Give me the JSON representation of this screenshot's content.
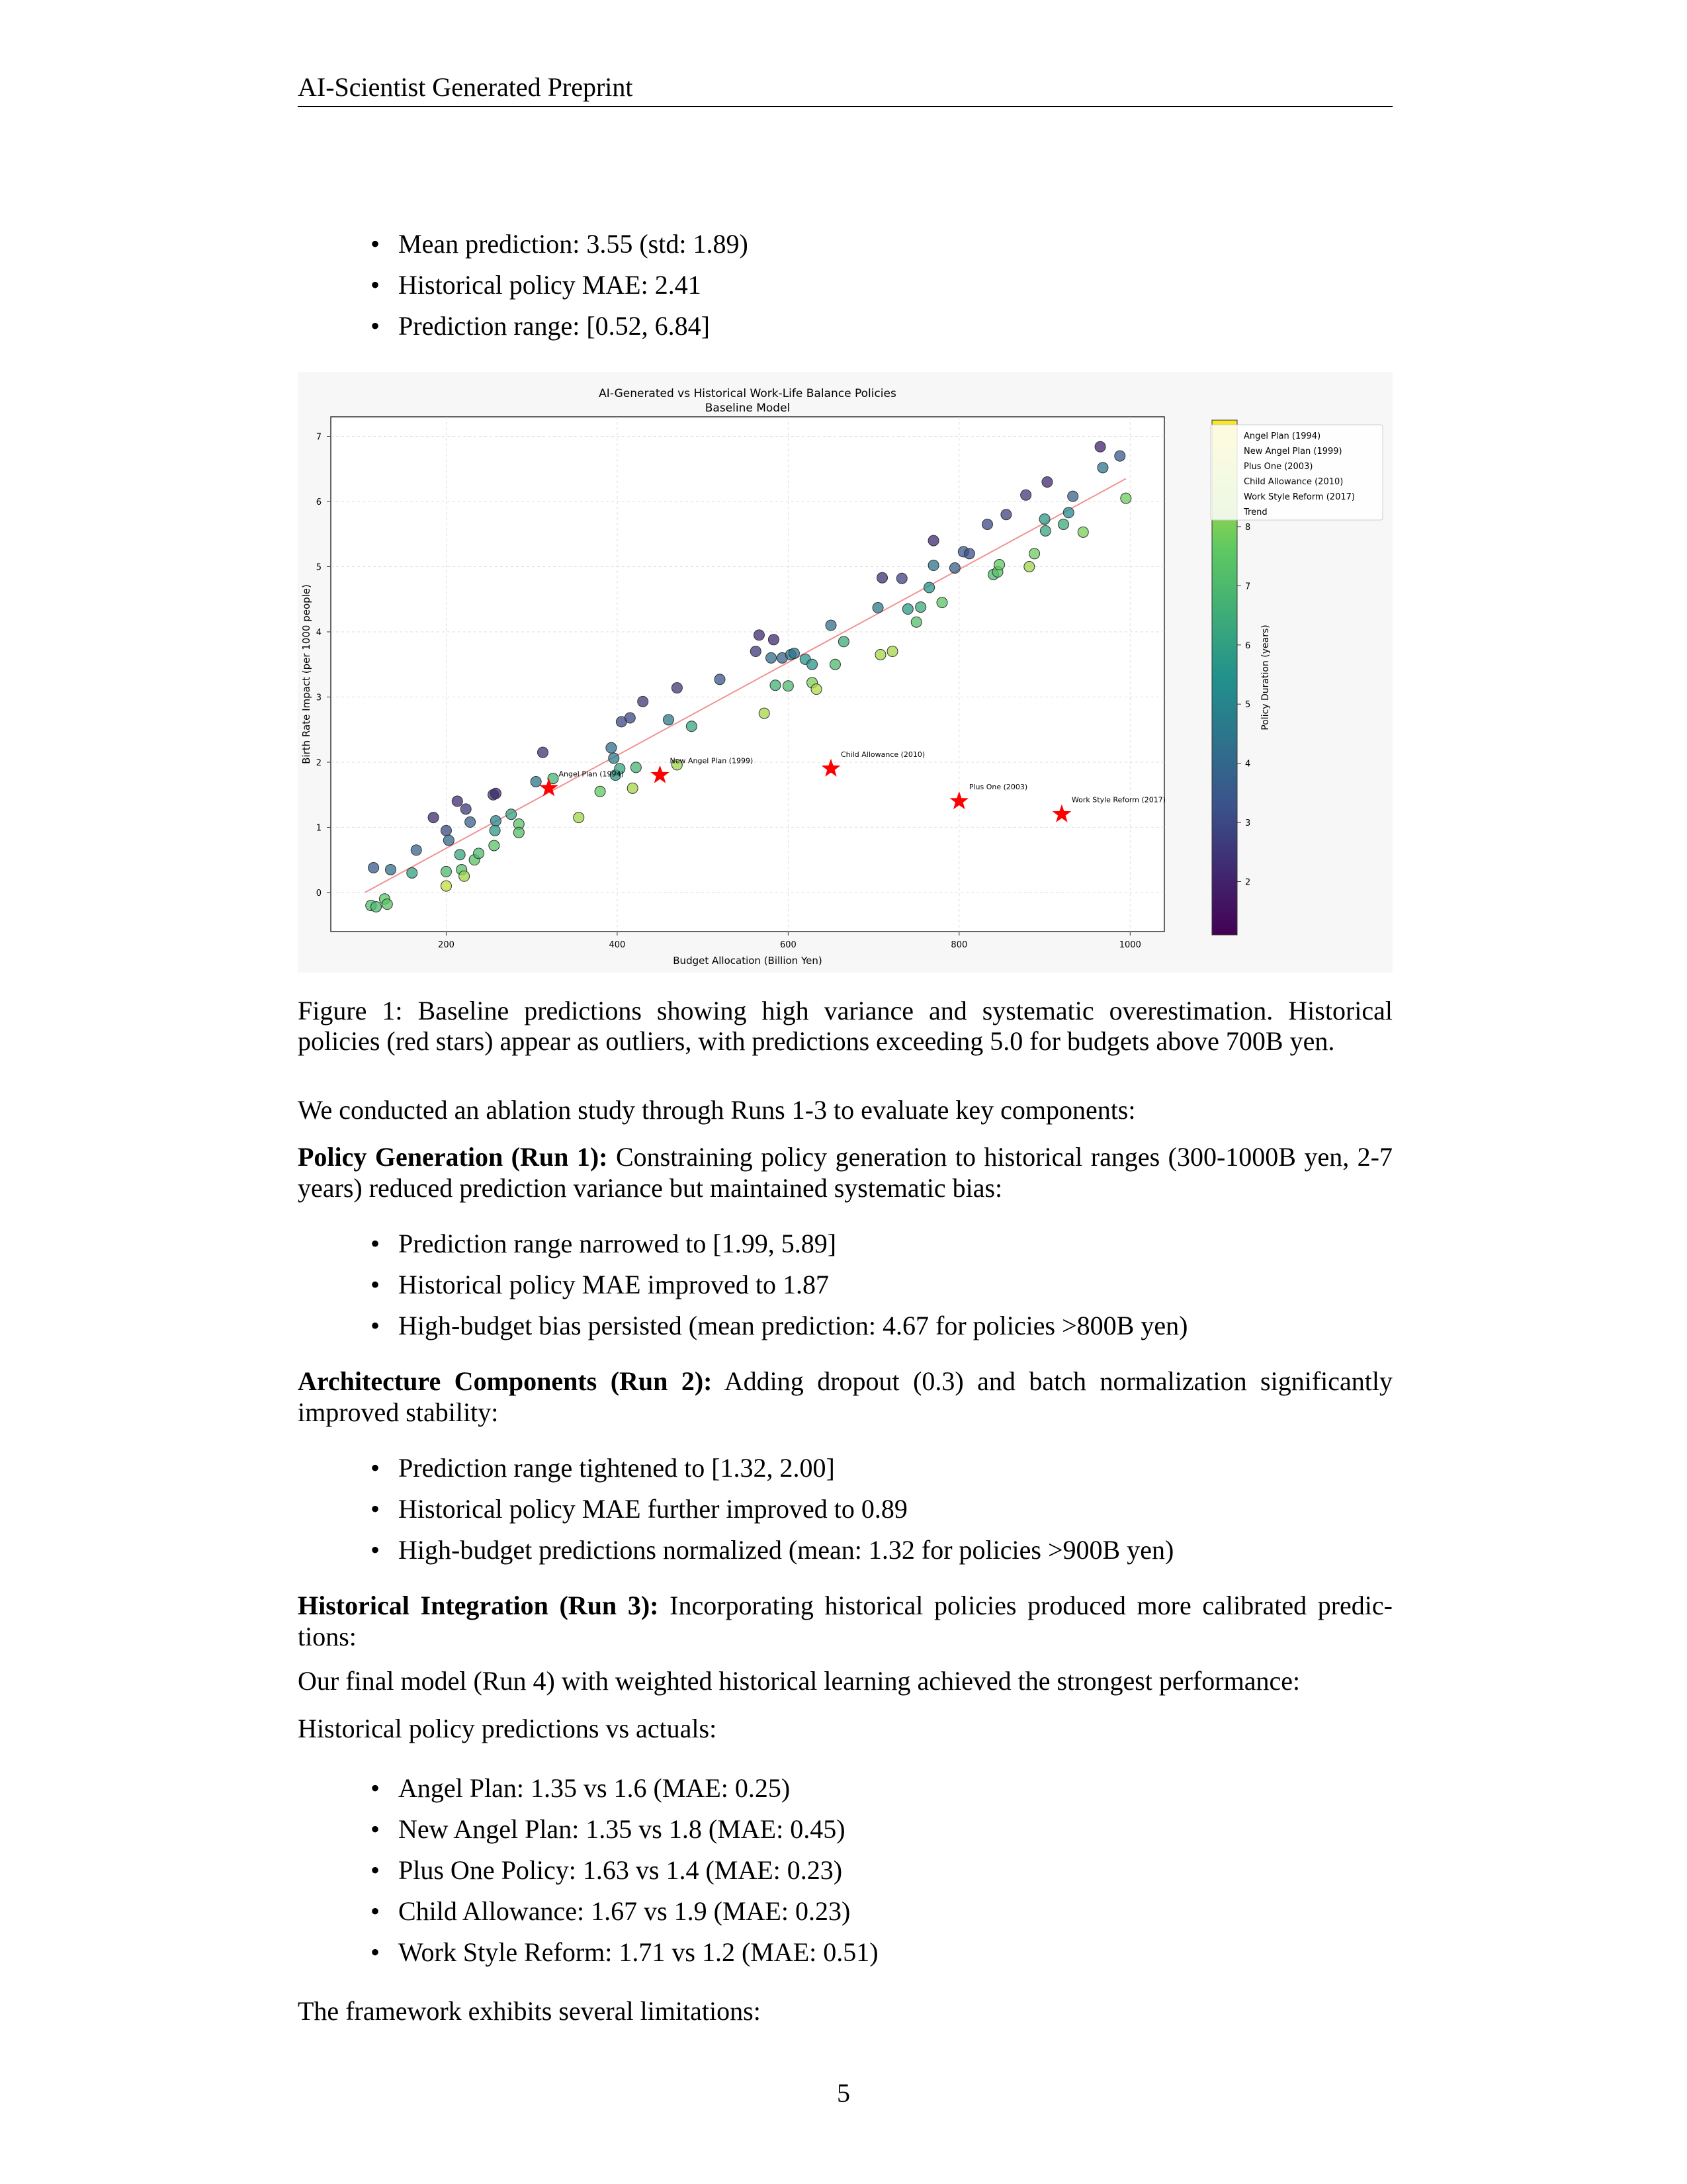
{
  "header": {
    "title": "AI-Scientist Generated Preprint"
  },
  "list_baseline": [
    "Mean prediction: 3.55 (std: 1.89)",
    "Historical policy MAE: 2.41",
    "Prediction range: [0.52, 6.84]"
  ],
  "figure": {
    "caption": "Figure 1: Baseline predictions showing high variance and systematic overestimation. Historical policies (red stars) appear as outliers, with predictions exceeding 5.0 for budgets above 700B yen."
  },
  "chart_data": {
    "type": "scatter",
    "title": "AI-Generated vs Historical Work-Life Balance Policies",
    "subtitle": "Baseline Model",
    "xlabel": "Budget Allocation (Billion Yen)",
    "ylabel": "Birth Rate Impact (per 1000 people)",
    "xlim": [
      65,
      1040
    ],
    "ylim": [
      -0.6,
      7.3
    ],
    "xticks": [
      200,
      400,
      600,
      800,
      1000
    ],
    "yticks": [
      0,
      1,
      2,
      3,
      4,
      5,
      6,
      7
    ],
    "grid": true,
    "colorbar": {
      "label": "Policy Duration (years)",
      "range": [
        1.1,
        9.8
      ],
      "ticks": [
        2,
        3,
        4,
        5,
        6,
        7,
        8
      ],
      "colormap": "viridis"
    },
    "legend": {
      "placement": "top-right",
      "entries": [
        "Angel Plan (1994)",
        "New Angel Plan (1999)",
        "Plus One (2003)",
        "Child Allowance (2010)",
        "Work Style Reform (2017)",
        "Trend"
      ]
    },
    "historical_policies": [
      {
        "name": "Angel Plan (1994)",
        "x": 320,
        "y": 1.6
      },
      {
        "name": "New Angel Plan (1999)",
        "x": 450,
        "y": 1.8
      },
      {
        "name": "Child Allowance (2010)",
        "x": 650,
        "y": 1.9
      },
      {
        "name": "Plus One (2003)",
        "x": 800,
        "y": 1.4
      },
      {
        "name": "Work Style Reform (2017)",
        "x": 920,
        "y": 1.2
      }
    ],
    "historical_color": "#ff0000",
    "trend": {
      "x": [
        105,
        995
      ],
      "y": [
        0.0,
        6.35
      ],
      "color": "#f08080"
    },
    "points": [
      [
        112,
        -0.2,
        7.2
      ],
      [
        118,
        -0.22,
        7.0
      ],
      [
        128,
        -0.1,
        7.5
      ],
      [
        131,
        -0.18,
        7.4
      ],
      [
        115,
        0.38,
        3.6
      ],
      [
        135,
        0.35,
        4.2
      ],
      [
        160,
        0.3,
        6.0
      ],
      [
        165,
        0.65,
        3.8
      ],
      [
        185,
        1.15,
        2.2
      ],
      [
        200,
        0.95,
        3.0
      ],
      [
        203,
        0.8,
        4.0
      ],
      [
        200,
        0.32,
        7.0
      ],
      [
        200,
        0.1,
        9.0
      ],
      [
        213,
        1.4,
        2.2
      ],
      [
        216,
        0.58,
        6.2
      ],
      [
        218,
        0.35,
        7.2
      ],
      [
        221,
        0.25,
        8.5
      ],
      [
        223,
        1.28,
        2.6
      ],
      [
        228,
        1.08,
        3.8
      ],
      [
        233,
        0.5,
        7.4
      ],
      [
        238,
        0.6,
        7.0
      ],
      [
        255,
        1.5,
        2.6
      ],
      [
        258,
        1.52,
        2.2
      ],
      [
        258,
        1.1,
        5.0
      ],
      [
        257,
        0.95,
        5.8
      ],
      [
        256,
        0.72,
        7.4
      ],
      [
        276,
        1.2,
        6.0
      ],
      [
        285,
        1.05,
        7.4
      ],
      [
        285,
        0.92,
        7.2
      ],
      [
        305,
        1.7,
        4.4
      ],
      [
        313,
        2.15,
        2.4
      ],
      [
        325,
        1.75,
        6.8
      ],
      [
        355,
        1.15,
        8.5
      ],
      [
        380,
        1.55,
        7.6
      ],
      [
        393,
        2.22,
        4.2
      ],
      [
        396,
        2.06,
        4.7
      ],
      [
        398,
        1.8,
        5.6
      ],
      [
        403,
        1.9,
        6.2
      ],
      [
        405,
        2.62,
        3.0
      ],
      [
        415,
        2.68,
        3.0
      ],
      [
        418,
        1.6,
        8.6
      ],
      [
        422,
        1.92,
        6.8
      ],
      [
        430,
        2.93,
        2.6
      ],
      [
        460,
        2.65,
        4.6
      ],
      [
        470,
        3.14,
        2.6
      ],
      [
        470,
        1.96,
        8.5
      ],
      [
        487,
        2.55,
        6.2
      ],
      [
        520,
        3.27,
        3.4
      ],
      [
        562,
        3.7,
        2.6
      ],
      [
        566,
        3.95,
        2.2
      ],
      [
        572,
        2.75,
        8.6
      ],
      [
        580,
        3.6,
        4.2
      ],
      [
        583,
        3.88,
        2.2
      ],
      [
        585,
        3.18,
        6.6
      ],
      [
        593,
        3.6,
        3.8
      ],
      [
        600,
        3.17,
        7.0
      ],
      [
        603,
        3.65,
        4.6
      ],
      [
        607,
        3.67,
        4.4
      ],
      [
        620,
        3.58,
        5.6
      ],
      [
        628,
        3.5,
        5.6
      ],
      [
        628,
        3.22,
        8.0
      ],
      [
        633,
        3.12,
        8.8
      ],
      [
        650,
        4.1,
        4.2
      ],
      [
        655,
        3.5,
        7.0
      ],
      [
        665,
        3.85,
        6.4
      ],
      [
        705,
        4.37,
        4.6
      ],
      [
        708,
        3.65,
        8.6
      ],
      [
        710,
        4.83,
        2.4
      ],
      [
        722,
        3.7,
        8.6
      ],
      [
        733,
        4.82,
        2.8
      ],
      [
        740,
        4.35,
        5.8
      ],
      [
        750,
        4.15,
        7.2
      ],
      [
        755,
        4.38,
        6.4
      ],
      [
        765,
        4.68,
        5.6
      ],
      [
        770,
        5.02,
        4.4
      ],
      [
        770,
        5.4,
        2.2
      ],
      [
        780,
        4.45,
        7.4
      ],
      [
        795,
        4.98,
        3.8
      ],
      [
        805,
        5.23,
        3.6
      ],
      [
        812,
        5.2,
        3.2
      ],
      [
        833,
        5.65,
        3.0
      ],
      [
        840,
        4.88,
        7.0
      ],
      [
        845,
        4.92,
        7.4
      ],
      [
        847,
        5.03,
        7.6
      ],
      [
        855,
        5.8,
        2.8
      ],
      [
        878,
        6.1,
        2.6
      ],
      [
        882,
        5.0,
        8.5
      ],
      [
        888,
        5.2,
        7.8
      ],
      [
        900,
        5.73,
        5.8
      ],
      [
        901,
        5.55,
        6.2
      ],
      [
        903,
        6.3,
        2.2
      ],
      [
        922,
        5.65,
        6.4
      ],
      [
        928,
        5.83,
        5.2
      ],
      [
        933,
        6.08,
        3.8
      ],
      [
        945,
        5.53,
        8.0
      ],
      [
        965,
        6.84,
        2.0
      ],
      [
        968,
        6.52,
        4.4
      ],
      [
        988,
        6.7,
        3.6
      ],
      [
        995,
        6.05,
        7.8
      ]
    ]
  },
  "paragraphs": {
    "intro": "We conducted an ablation study through Runs 1-3 to evaluate key components:",
    "run1_head": "Policy Generation (Run 1):",
    "run1_text": " Constraining policy generation to historical ranges (300-1000B yen, 2-7 years) reduced prediction variance but maintained systematic bias:",
    "run2_head": "Architecture Components (Run 2):",
    "run2_text": " Adding dropout (0.3) and batch normalization significantly improved stability:",
    "run3_head": "Historical Integration (Run 3):",
    "run3_text": " Incorporating historical policies produced more calibrated predic-tions:",
    "final_model": "Our final model (Run 4) with weighted historical learning achieved the strongest performance:",
    "hist_vs_actual": "Historical policy predictions vs actuals:",
    "limitations": "The framework exhibits several limitations:"
  },
  "list_run1": [
    "Prediction range narrowed to [1.99, 5.89]",
    "Historical policy MAE improved to 1.87",
    "High-budget bias persisted (mean prediction: 4.67 for policies >800B yen)"
  ],
  "list_run2": [
    "Prediction range tightened to [1.32, 2.00]",
    "Historical policy MAE further improved to 0.89",
    "High-budget predictions normalized (mean: 1.32 for policies >900B yen)"
  ],
  "list_hist": [
    "Angel Plan: 1.35 vs 1.6 (MAE: 0.25)",
    "New Angel Plan: 1.35 vs 1.8 (MAE: 0.45)",
    "Plus One Policy: 1.63 vs 1.4 (MAE: 0.23)",
    "Child Allowance: 1.67 vs 1.9 (MAE: 0.23)",
    "Work Style Reform: 1.71 vs 1.2 (MAE: 0.51)"
  ],
  "page_number": "5"
}
